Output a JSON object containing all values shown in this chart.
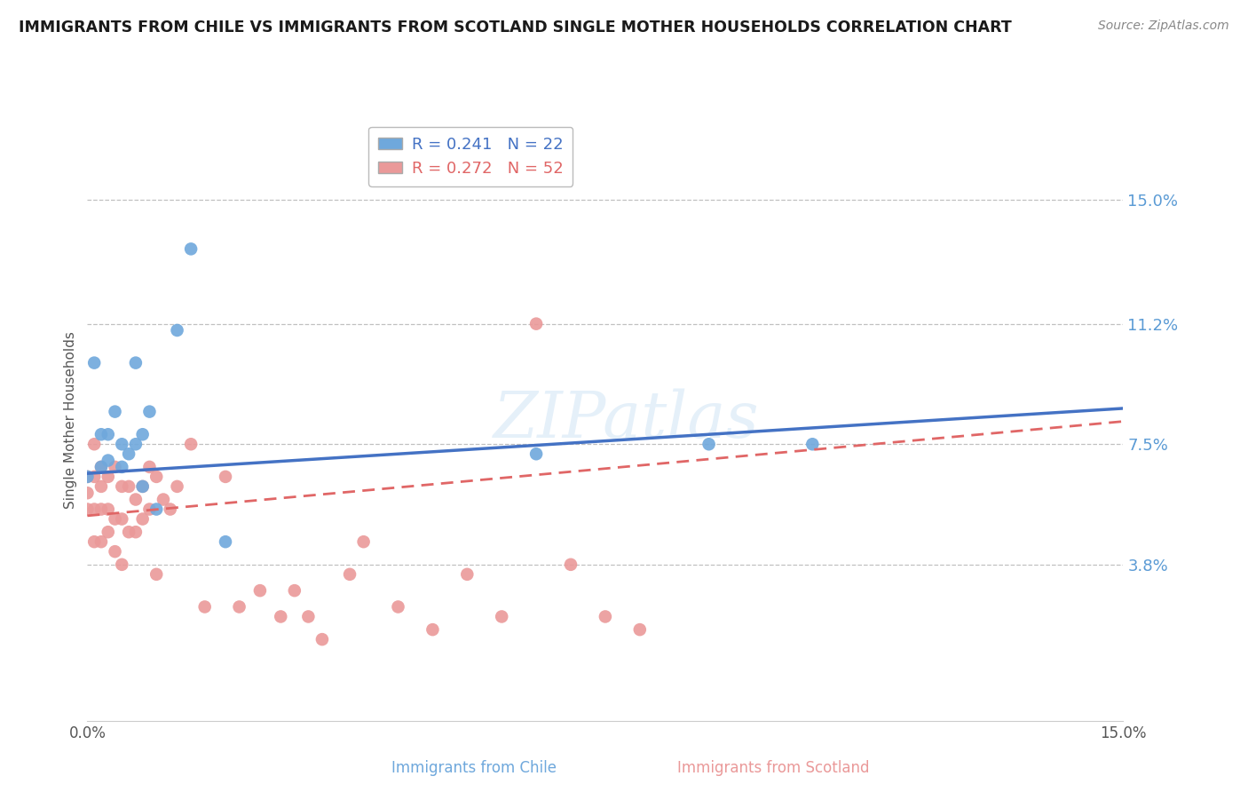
{
  "title": "IMMIGRANTS FROM CHILE VS IMMIGRANTS FROM SCOTLAND SINGLE MOTHER HOUSEHOLDS CORRELATION CHART",
  "source": "Source: ZipAtlas.com",
  "ylabel": "Single Mother Households",
  "xlim": [
    0.0,
    0.15
  ],
  "ylim": [
    -0.01,
    0.175
  ],
  "plot_ylim": [
    -0.01,
    0.175
  ],
  "yticks": [
    0.038,
    0.075,
    0.112,
    0.15
  ],
  "ytick_labels": [
    "3.8%",
    "7.5%",
    "11.2%",
    "15.0%"
  ],
  "xtick_labels": [
    "0.0%",
    "15.0%"
  ],
  "xticks": [
    0.0,
    0.15
  ],
  "chile_R": 0.241,
  "chile_N": 22,
  "scotland_R": 0.272,
  "scotland_N": 52,
  "chile_color": "#6fa8dc",
  "scotland_color": "#ea9999",
  "chile_line_color": "#4472c4",
  "scotland_line_color": "#e06666",
  "background_color": "#ffffff",
  "grid_color": "#c0c0c0",
  "watermark": "ZIPatlas",
  "chile_points_x": [
    0.0,
    0.001,
    0.002,
    0.002,
    0.003,
    0.003,
    0.004,
    0.005,
    0.005,
    0.006,
    0.007,
    0.007,
    0.008,
    0.008,
    0.009,
    0.01,
    0.013,
    0.015,
    0.02,
    0.065,
    0.09,
    0.105
  ],
  "chile_points_y": [
    0.065,
    0.1,
    0.068,
    0.078,
    0.07,
    0.078,
    0.085,
    0.068,
    0.075,
    0.072,
    0.075,
    0.1,
    0.062,
    0.078,
    0.085,
    0.055,
    0.11,
    0.135,
    0.045,
    0.072,
    0.075,
    0.075
  ],
  "scotland_points_x": [
    0.0,
    0.0,
    0.0,
    0.001,
    0.001,
    0.001,
    0.001,
    0.002,
    0.002,
    0.002,
    0.002,
    0.003,
    0.003,
    0.003,
    0.004,
    0.004,
    0.004,
    0.005,
    0.005,
    0.005,
    0.006,
    0.006,
    0.007,
    0.007,
    0.008,
    0.008,
    0.009,
    0.009,
    0.01,
    0.01,
    0.011,
    0.012,
    0.013,
    0.015,
    0.017,
    0.02,
    0.022,
    0.025,
    0.028,
    0.03,
    0.032,
    0.034,
    0.038,
    0.04,
    0.045,
    0.05,
    0.055,
    0.06,
    0.065,
    0.07,
    0.075,
    0.08
  ],
  "scotland_points_y": [
    0.055,
    0.06,
    0.065,
    0.045,
    0.055,
    0.065,
    0.075,
    0.045,
    0.055,
    0.062,
    0.068,
    0.048,
    0.055,
    0.065,
    0.042,
    0.052,
    0.068,
    0.038,
    0.052,
    0.062,
    0.048,
    0.062,
    0.048,
    0.058,
    0.052,
    0.062,
    0.055,
    0.068,
    0.035,
    0.065,
    0.058,
    0.055,
    0.062,
    0.075,
    0.025,
    0.065,
    0.025,
    0.03,
    0.022,
    0.03,
    0.022,
    0.015,
    0.035,
    0.045,
    0.025,
    0.018,
    0.035,
    0.022,
    0.112,
    0.038,
    0.022,
    0.018
  ]
}
